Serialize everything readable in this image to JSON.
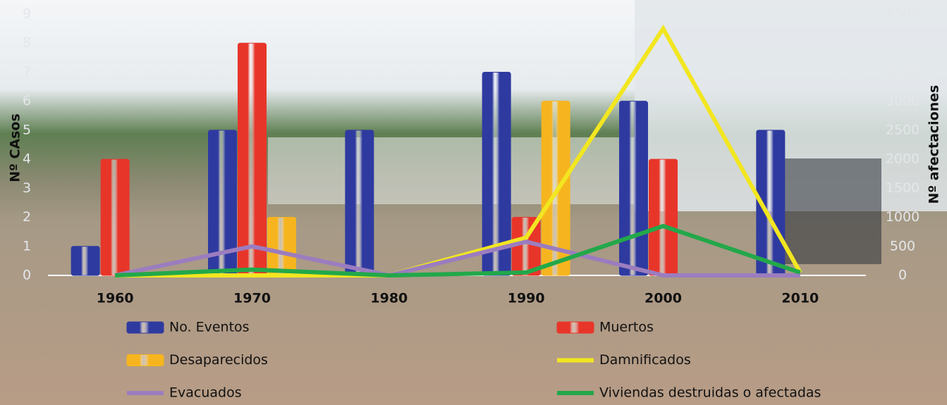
{
  "chart_data": {
    "type": "bar",
    "categories": [
      "1960",
      "1970",
      "1980",
      "1990",
      "2000",
      "2010"
    ],
    "ylabel": "Nº CAsos",
    "y2label": "Nº afectaciones",
    "ylim": [
      0,
      9
    ],
    "yticks": [
      0,
      1,
      2,
      3,
      4,
      5,
      6,
      7,
      8,
      9
    ],
    "y2lim": [
      0,
      4500
    ],
    "y2ticks": [
      0,
      500,
      1000,
      1500,
      2000,
      2500,
      3000,
      3500,
      4000,
      4500
    ],
    "series": [
      {
        "name": "No. Eventos",
        "type": "bar",
        "color": "#2f3aa0",
        "values": [
          1,
          5,
          5,
          7,
          6,
          5
        ]
      },
      {
        "name": "Muertos",
        "type": "bar",
        "color": "#e8352a",
        "values": [
          4,
          8,
          null,
          2,
          4,
          null
        ]
      },
      {
        "name": "Desaparecidos",
        "type": "bar",
        "color": "#f6b51f",
        "values": [
          null,
          2,
          null,
          6,
          null,
          null
        ]
      },
      {
        "name": "Damnificados",
        "type": "line",
        "axis": "y2",
        "color": "#f2e620",
        "values": [
          0,
          0,
          0,
          650,
          4250,
          50
        ]
      },
      {
        "name": "Evacuados",
        "type": "line",
        "axis": "y2",
        "color": "#9b7dbf",
        "values": [
          0,
          500,
          0,
          580,
          0,
          0
        ]
      },
      {
        "name": "Viviendas destruidas o afectadas",
        "type": "line",
        "axis": "y2",
        "color": "#22a84a",
        "values": [
          0,
          100,
          0,
          50,
          850,
          50
        ]
      }
    ]
  }
}
